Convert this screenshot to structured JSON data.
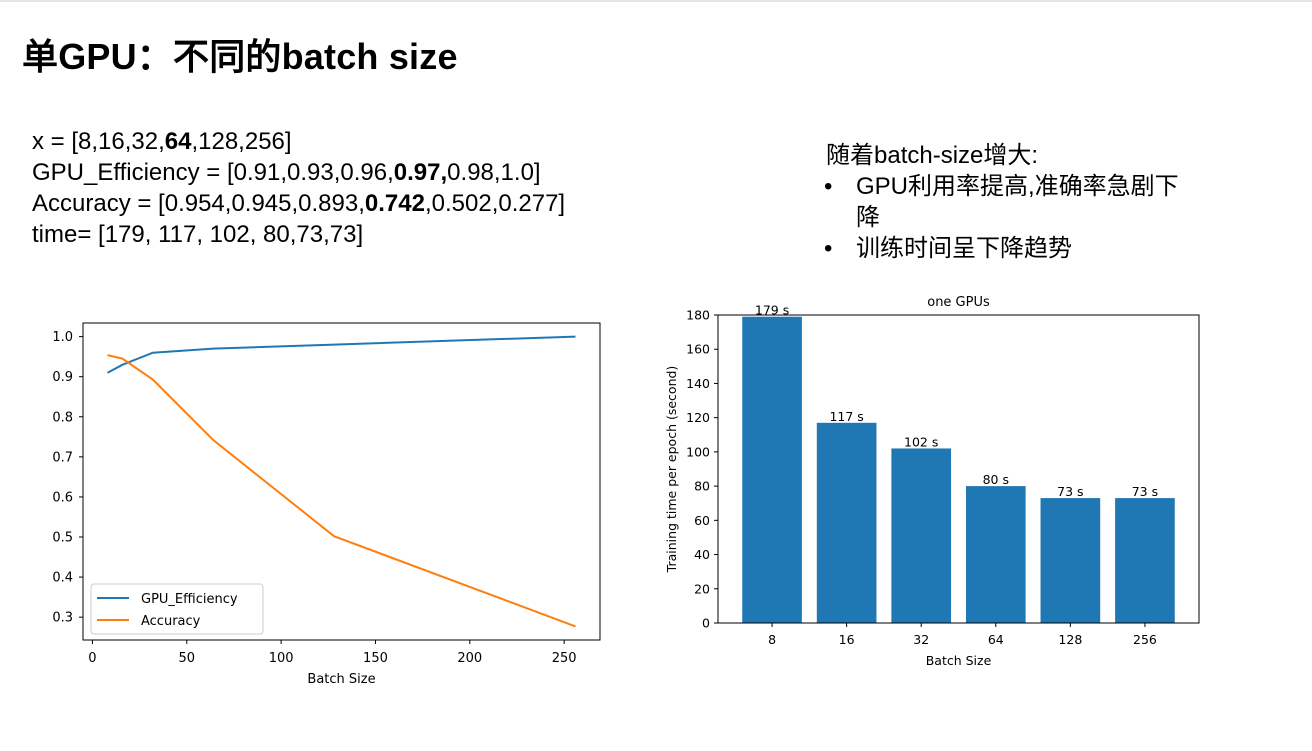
{
  "slide": {
    "title": "单GPU：不同的batch size",
    "code_lines": [
      {
        "pre": "x = [8,16,32,",
        "bold": "64",
        "post": ",128,256]"
      },
      {
        "pre": "GPU_Efficiency = [0.91,0.93,0.96,",
        "bold": "0.97,",
        "post": "0.98,1.0]"
      },
      {
        "pre": "Accuracy = [0.954,0.945,0.893,",
        "bold": "0.742",
        "post": ",0.502,0.277]"
      },
      {
        "pre": "time= [179, 117, 102, 80,73,73]",
        "bold": "",
        "post": ""
      }
    ],
    "notes_heading": "随着batch-size增大:",
    "notes_bullets": [
      "GPU利用率提高,准确率急剧下降",
      "训练时间呈下降趋势"
    ],
    "bullet_char": "•"
  },
  "chart_data": [
    {
      "type": "line",
      "title": "",
      "xlabel": "Batch Size",
      "ylabel": "",
      "x": [
        8,
        16,
        32,
        64,
        128,
        256
      ],
      "xlim": [
        -5,
        269
      ],
      "ylim": [
        0.243,
        1.034
      ],
      "xticks": [
        0,
        50,
        100,
        150,
        200,
        250
      ],
      "yticks": [
        0.3,
        0.4,
        0.5,
        0.6,
        0.7,
        0.8,
        0.9,
        1.0
      ],
      "ytick_labels": [
        "0.3",
        "0.4",
        "0.5",
        "0.6",
        "0.7",
        "0.8",
        "0.9",
        "1.0"
      ],
      "grid": false,
      "legend": "lower-left",
      "series": [
        {
          "name": "GPU_Efficiency",
          "color": "#1f77b4",
          "values": [
            0.91,
            0.93,
            0.96,
            0.97,
            0.98,
            1.0
          ]
        },
        {
          "name": "Accuracy",
          "color": "#ff7f0e",
          "values": [
            0.954,
            0.945,
            0.893,
            0.742,
            0.502,
            0.277
          ]
        }
      ]
    },
    {
      "type": "bar",
      "title": "one GPUs",
      "xlabel": "Batch Size",
      "ylabel": "Training time per epoch (second)",
      "categories": [
        "8",
        "16",
        "32",
        "64",
        "128",
        "256"
      ],
      "values": [
        179,
        117,
        102,
        80,
        73,
        73
      ],
      "data_labels": [
        "179 s",
        "117 s",
        "102 s",
        "80 s",
        "73 s",
        "73 s"
      ],
      "ylim": [
        0,
        180
      ],
      "yticks": [
        0,
        20,
        40,
        60,
        80,
        100,
        120,
        140,
        160,
        180
      ],
      "bar_color": "#1f77b4",
      "grid": false
    }
  ]
}
